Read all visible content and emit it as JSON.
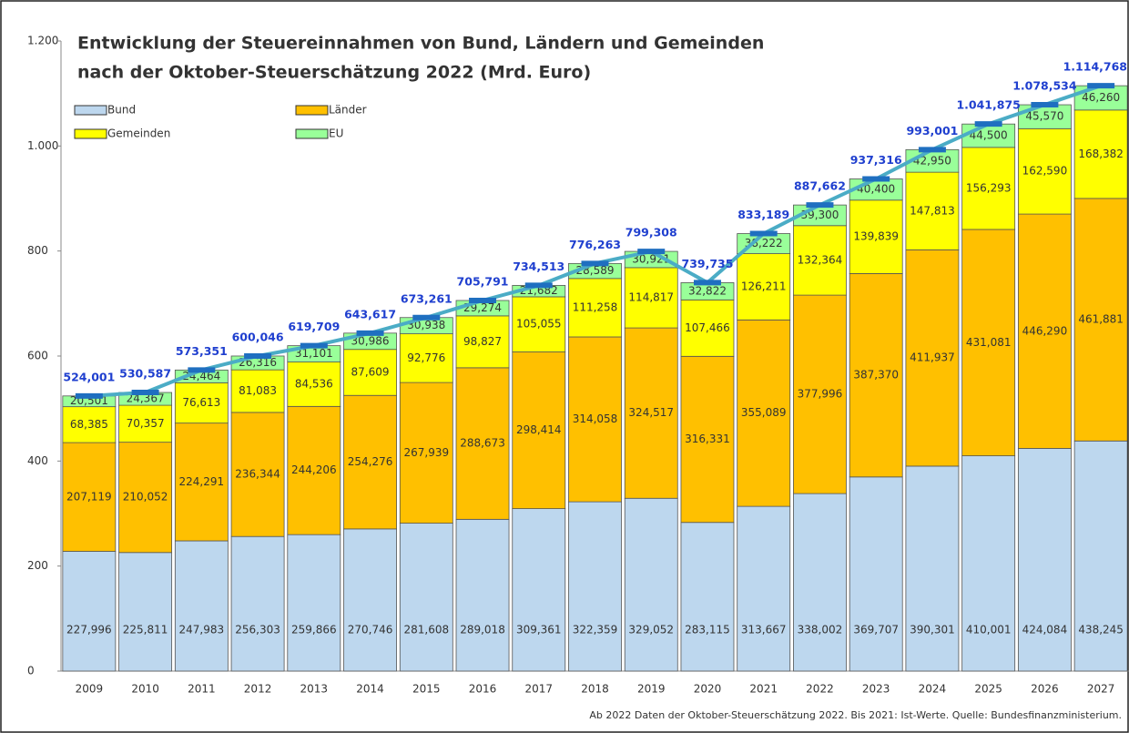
{
  "chart_data": {
    "type": "stacked_bar",
    "title": [
      "Entwicklung der Steuereinnahmen von Bund, Ländern und Gemeinden",
      "nach der Oktober-Steuerschätzung 2022 (Mrd. Euro)"
    ],
    "footnote": "Ab 2022 Daten der Oktober-Steuerschätzung 2022. Bis 2021: Ist-Werte. Quelle: Bundesfinanzministerium.",
    "categories": [
      "2009",
      "2010",
      "2011",
      "2012",
      "2013",
      "2014",
      "2015",
      "2016",
      "2017",
      "2018",
      "2019",
      "2020",
      "2021",
      "2022",
      "2023",
      "2024",
      "2025",
      "2026",
      "2027"
    ],
    "ylim": [
      0,
      1200
    ],
    "yticks": [
      0,
      200,
      400,
      600,
      800,
      {
        "value": 1000,
        "label": "1.000"
      },
      {
        "value": 1200,
        "label": "1.200"
      }
    ],
    "series": [
      {
        "name": "Bund",
        "color": "#bdd7ee",
        "values": [
          227.996,
          225.811,
          247.983,
          256.303,
          259.866,
          270.746,
          281.608,
          289.018,
          309.361,
          322.359,
          329.052,
          283.115,
          313.667,
          338.002,
          369.707,
          390.301,
          410.001,
          424.084,
          438.245
        ],
        "value_labels": [
          "227,996",
          "225,811",
          "247,983",
          "256,303",
          "259,866",
          "270,746",
          "281,608",
          "289,018",
          "309,361",
          "322,359",
          "329,052",
          "283,115",
          "313,667",
          "338,002",
          "369,707",
          "390,301",
          "410,001",
          "424,084",
          "438,245"
        ]
      },
      {
        "name": "Länder",
        "color": "#ffc000",
        "values": [
          207.119,
          210.052,
          224.291,
          236.344,
          244.206,
          254.276,
          267.939,
          288.673,
          298.414,
          314.058,
          324.517,
          316.331,
          355.089,
          377.996,
          387.37,
          411.937,
          431.081,
          446.29,
          461.881
        ],
        "value_labels": [
          "207,119",
          "210,052",
          "224,291",
          "236,344",
          "244,206",
          "254,276",
          "267,939",
          "288,673",
          "298,414",
          "314,058",
          "324,517",
          "316,331",
          "355,089",
          "377,996",
          "387,370",
          "411,937",
          "431,081",
          "446,290",
          "461,881"
        ]
      },
      {
        "name": "Gemeinden",
        "color": "#ffff00",
        "values": [
          68.385,
          70.357,
          76.613,
          81.083,
          84.536,
          87.609,
          92.776,
          98.827,
          105.055,
          111.258,
          114.817,
          107.466,
          126.211,
          132.364,
          139.839,
          147.813,
          156.293,
          162.59,
          168.382
        ],
        "value_labels": [
          "68,385",
          "70,357",
          "76,613",
          "81,083",
          "84,536",
          "87,609",
          "92,776",
          "98,827",
          "105,055",
          "111,258",
          "114,817",
          "107,466",
          "126,211",
          "132,364",
          "139,839",
          "147,813",
          "156,293",
          "162,590",
          "168,382"
        ]
      },
      {
        "name": "EU",
        "color": "#99ff99",
        "values": [
          20.501,
          24.367,
          24.464,
          26.316,
          31.101,
          30.986,
          30.938,
          29.274,
          21.682,
          28.589,
          30.921,
          32.822,
          38.222,
          39.3,
          40.4,
          42.95,
          44.5,
          45.57,
          46.26
        ],
        "value_labels": [
          "20,501",
          "24,367",
          "24,464",
          "26,316",
          "31,101",
          "30,986",
          "30,938",
          "29,274",
          "21,682",
          "28,589",
          "30,921",
          "32,822",
          "38,222",
          "39,300",
          "40,400",
          "42,950",
          "44,500",
          "45,570",
          "46,260"
        ]
      }
    ],
    "totals": {
      "color": "#4bacc6",
      "marker_color": "#1f6fc0",
      "label_color": "#1f3fcf",
      "values": [
        524.001,
        530.587,
        573.351,
        600.046,
        619.709,
        643.617,
        673.261,
        705.791,
        734.513,
        776.263,
        799.308,
        739.735,
        833.189,
        887.662,
        937.316,
        993.001,
        1041.875,
        1078.534,
        1114.768
      ],
      "value_labels": [
        "524,001",
        "530,587",
        "573,351",
        "600,046",
        "619,709",
        "643,617",
        "673,261",
        "705,791",
        "734,513",
        "776,263",
        "799,308",
        "739,735",
        "833,189",
        "887,662",
        "937,316",
        "993,001",
        "1.041,875",
        "1.078,534",
        "1.114,768"
      ]
    }
  }
}
